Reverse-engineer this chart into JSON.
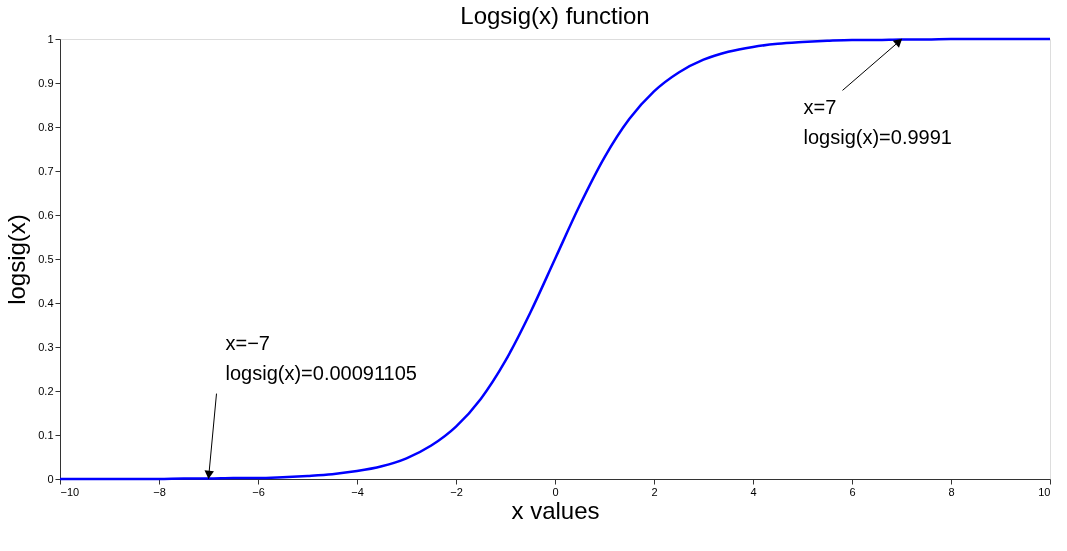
{
  "chart_data": {
    "type": "line",
    "title": "Logsig(x) function",
    "xlabel": "x values",
    "ylabel": "logsig(x)",
    "x": [
      -10,
      -9.5,
      -9,
      -8.5,
      -8,
      -7.5,
      -7,
      -6.5,
      -6,
      -5.5,
      -5,
      -4.5,
      -4,
      -3.5,
      -3,
      -2.5,
      -2,
      -1.5,
      -1,
      -0.5,
      0,
      0.5,
      1,
      1.5,
      2,
      2.5,
      3,
      3.5,
      4,
      4.5,
      5,
      5.5,
      6,
      6.5,
      7,
      7.5,
      8,
      8.5,
      9,
      9.5,
      10
    ],
    "series": [
      {
        "color": "#0000ff",
        "values": [
          0,
          0,
          0,
          0,
          0,
          0.001,
          0.001,
          0.002,
          0.002,
          0.004,
          0.007,
          0.011,
          0.018,
          0.029,
          0.047,
          0.076,
          0.119,
          0.182,
          0.269,
          0.378,
          0.5,
          0.622,
          0.731,
          0.818,
          0.881,
          0.924,
          0.953,
          0.971,
          0.982,
          0.989,
          0.993,
          0.996,
          0.998,
          0.998,
          0.999,
          0.999,
          1,
          1,
          1,
          1,
          1
        ]
      }
    ],
    "xlim": [
      -10,
      10
    ],
    "ylim": [
      0,
      1
    ],
    "xticks": [
      {
        "value": -10,
        "label": "−10"
      },
      {
        "value": -8,
        "label": "−8"
      },
      {
        "value": -6,
        "label": "−6"
      },
      {
        "value": -4,
        "label": "−4"
      },
      {
        "value": -2,
        "label": "−2"
      },
      0,
      2,
      4,
      6,
      8,
      10
    ],
    "yticks": [
      0,
      0.1,
      0.2,
      0.3,
      0.4,
      0.5,
      0.6,
      0.7,
      0.8,
      0.9,
      1
    ],
    "annotations": [
      {
        "text": "x=−7\nlogsig(x)=0.00091105",
        "x": -7,
        "y": 0.00091105
      },
      {
        "text": "x=7\nlogsig(x)=0.9991",
        "x": 7,
        "y": 0.9991
      }
    ],
    "grid": false,
    "marker": "none",
    "line_style": "solid"
  }
}
